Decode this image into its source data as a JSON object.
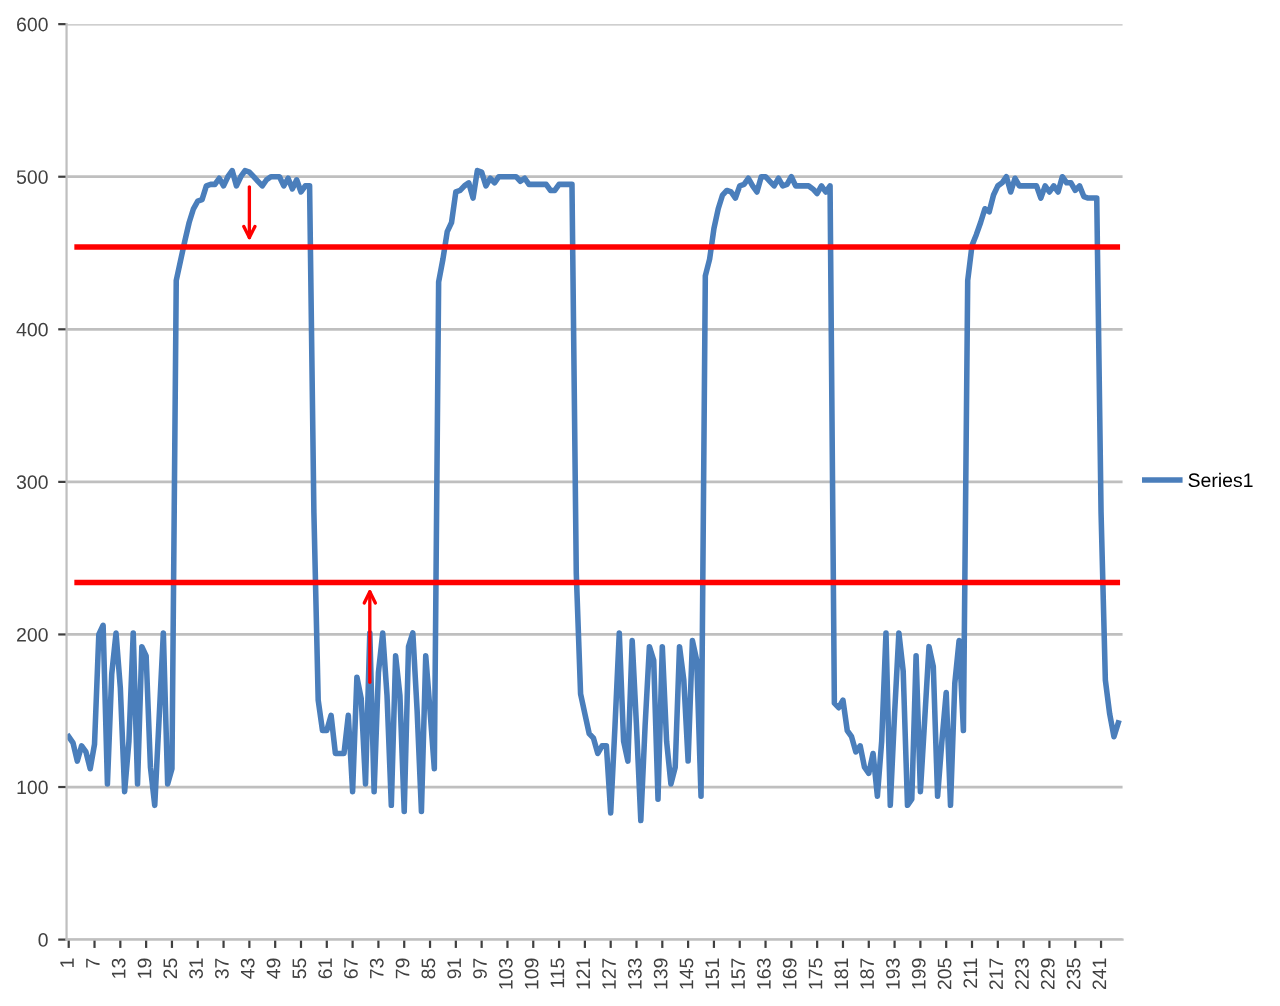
{
  "chart_data": {
    "type": "line",
    "xlim": [
      0.5,
      246
    ],
    "ylim": [
      0,
      600
    ],
    "yticks": [
      0,
      100,
      200,
      300,
      400,
      500,
      600
    ],
    "xticks": [
      1,
      7,
      13,
      19,
      25,
      31,
      37,
      43,
      49,
      55,
      61,
      67,
      73,
      79,
      85,
      91,
      97,
      103,
      109,
      115,
      121,
      127,
      133,
      139,
      145,
      151,
      157,
      163,
      169,
      175,
      181,
      187,
      193,
      199,
      205,
      211,
      217,
      223,
      229,
      235,
      241
    ],
    "grid": "y",
    "legend": "right",
    "marker": "none",
    "line_style": "solid",
    "ref_lines": [
      {
        "axis": "y",
        "value": 454,
        "color": "#ff0000"
      },
      {
        "axis": "y",
        "value": 234,
        "color": "#ff0000"
      }
    ],
    "series": [
      {
        "name": "Series1",
        "color": "#4a7ebb",
        "x": [
          1,
          2,
          3,
          4,
          5,
          6,
          7,
          8,
          9,
          10,
          11,
          12,
          13,
          14,
          15,
          16,
          17,
          18,
          19,
          20,
          21,
          22,
          23,
          24,
          25,
          26,
          27,
          28,
          29,
          30,
          31,
          32,
          33,
          34,
          35,
          36,
          37,
          38,
          39,
          40,
          41,
          42,
          43,
          44,
          45,
          46,
          47,
          48,
          49,
          50,
          51,
          52,
          53,
          54,
          55,
          56,
          57,
          58,
          59,
          60,
          61,
          62,
          63,
          64,
          65,
          66,
          67,
          68,
          69,
          70,
          71,
          72,
          73,
          74,
          75,
          76,
          77,
          78,
          79,
          80,
          81,
          82,
          83,
          84,
          85,
          86,
          87,
          88,
          89,
          90,
          91,
          92,
          93,
          94,
          95,
          96,
          97,
          98,
          99,
          100,
          101,
          102,
          103,
          104,
          105,
          106,
          107,
          108,
          109,
          110,
          111,
          112,
          113,
          114,
          115,
          116,
          117,
          118,
          119,
          120,
          121,
          122,
          123,
          124,
          125,
          126,
          127,
          128,
          129,
          130,
          131,
          132,
          133,
          134,
          135,
          136,
          137,
          138,
          139,
          140,
          141,
          142,
          143,
          144,
          145,
          146,
          147,
          148,
          149,
          150,
          151,
          152,
          153,
          154,
          155,
          156,
          157,
          158,
          159,
          160,
          161,
          162,
          163,
          164,
          165,
          166,
          167,
          168,
          169,
          170,
          171,
          172,
          173,
          174,
          175,
          176,
          177,
          178,
          179,
          180,
          181,
          182,
          183,
          184,
          185,
          186,
          187,
          188,
          189,
          190,
          191,
          192,
          193,
          194,
          195,
          196,
          197,
          198,
          199,
          200,
          201,
          202,
          203,
          204,
          205,
          206,
          207,
          208,
          209,
          210,
          211,
          212,
          213,
          214,
          215,
          216,
          217,
          218,
          219,
          220,
          221,
          222,
          223,
          224,
          225,
          226,
          227,
          228,
          229,
          230,
          231,
          232,
          233,
          234,
          235,
          236,
          237,
          238,
          239,
          240,
          241,
          242,
          243,
          244,
          245
        ],
        "values": [
          133,
          129,
          117,
          127,
          123,
          112,
          128,
          200,
          206,
          102,
          174,
          201,
          165,
          97,
          130,
          201,
          102,
          192,
          186,
          113,
          88,
          144,
          201,
          102,
          112,
          432,
          445,
          458,
          470,
          479,
          484,
          485,
          494,
          495,
          495,
          499,
          494,
          500,
          504,
          494,
          500,
          504,
          503,
          500,
          497,
          494,
          498,
          500,
          500,
          500,
          494,
          499,
          492,
          498,
          490,
          494,
          494,
          280,
          157,
          137,
          137,
          147,
          122,
          122,
          122,
          147,
          97,
          172,
          158,
          102,
          201,
          97,
          175,
          201,
          160,
          88,
          186,
          160,
          84,
          192,
          201,
          150,
          84,
          186,
          150,
          112,
          431,
          446,
          464,
          470,
          490,
          491,
          494,
          496,
          486,
          504,
          503,
          494,
          499,
          496,
          500,
          500,
          500,
          500,
          500,
          497,
          499,
          495,
          495,
          495,
          495,
          495,
          491,
          491,
          495,
          495,
          495,
          495,
          240,
          161,
          148,
          135,
          132,
          122,
          127,
          127,
          83,
          140,
          201,
          130,
          117,
          196,
          140,
          78,
          140,
          192,
          183,
          92,
          192,
          130,
          102,
          113,
          192,
          170,
          117,
          196,
          183,
          94,
          435,
          446,
          466,
          479,
          488,
          491,
          490,
          486,
          494,
          495,
          499,
          494,
          490,
          500,
          500,
          497,
          494,
          499,
          494,
          495,
          500,
          494,
          494,
          494,
          494,
          492,
          489,
          494,
          490,
          494,
          155,
          152,
          157,
          137,
          133,
          123,
          127,
          113,
          109,
          122,
          94,
          130,
          201,
          88,
          148,
          201,
          176,
          88,
          92,
          186,
          97,
          144,
          192,
          179,
          94,
          130,
          162,
          88,
          168,
          196,
          137,
          432,
          455,
          462,
          470,
          479,
          477,
          488,
          494,
          496,
          500,
          490,
          499,
          494,
          494,
          494,
          494,
          494,
          486,
          494,
          490,
          494,
          490,
          500,
          496,
          496,
          491,
          494,
          487,
          486,
          486,
          486,
          280,
          170,
          148,
          133,
          142
        ]
      }
    ]
  }
}
